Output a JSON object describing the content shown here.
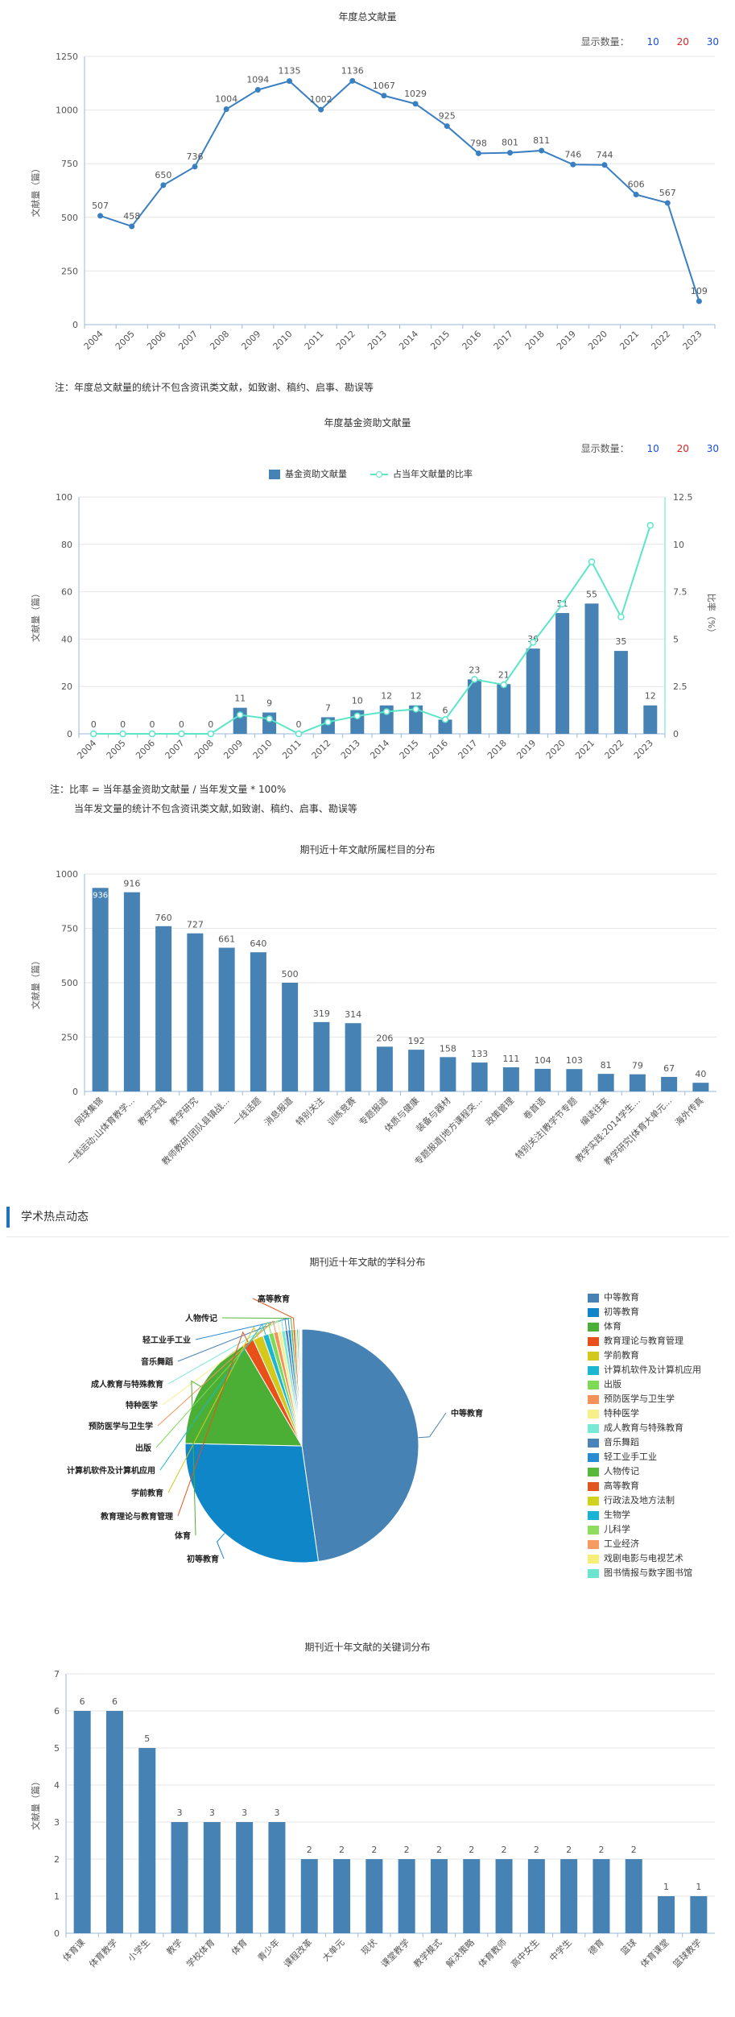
{
  "colors": {
    "bar": "#4682b4",
    "line": "#3a7fc1",
    "ratio": "#5ce6c8",
    "axis": "#9bb8d9",
    "grid": "#e6e6e6"
  },
  "count_selector": {
    "label": "显示数量：",
    "opt10": "10",
    "opt20": "20",
    "opt30": "30"
  },
  "notes": {
    "annual": "注：年度总文献量的统计不包含资讯类文献，如致谢、稿约、启事、勘误等",
    "fund1": "注：比率 = 当年基金资助文献量 / 当年发文量 * 100%",
    "fund2": "当年发文量的统计不包含资讯类文献,如致谢、稿约、启事、勘误等"
  },
  "section": {
    "title": "学术热点动态"
  },
  "chart_data": [
    {
      "type": "line",
      "title": "年度总文献量",
      "ylabel": "文献量（篇）",
      "ylim": [
        0,
        1250
      ],
      "yticks": [
        0,
        250,
        500,
        750,
        1000,
        1250
      ],
      "x": [
        "2004",
        "2005",
        "2006",
        "2007",
        "2008",
        "2009",
        "2010",
        "2011",
        "2012",
        "2013",
        "2014",
        "2015",
        "2016",
        "2017",
        "2018",
        "2019",
        "2020",
        "2021",
        "2022",
        "2023"
      ],
      "values": [
        507,
        458,
        650,
        736,
        1004,
        1094,
        1135,
        1002,
        1136,
        1067,
        1029,
        925,
        798,
        801,
        811,
        746,
        744,
        606,
        567,
        109
      ]
    },
    {
      "type": "bar",
      "title": "年度基金资助文献量",
      "ylabel": "文献量（篇）",
      "y2label": "比率（%）",
      "ylim": [
        0,
        100
      ],
      "yticks": [
        0,
        20,
        40,
        60,
        80,
        100
      ],
      "y2lim": [
        0,
        12.5
      ],
      "y2ticks": [
        "0",
        "2.5",
        "5",
        "7.5",
        "10",
        "12.5"
      ],
      "legend": [
        "基金资助文献量",
        "占当年文献量的比率"
      ],
      "x": [
        "2004",
        "2005",
        "2006",
        "2007",
        "2008",
        "2009",
        "2010",
        "2011",
        "2012",
        "2013",
        "2014",
        "2015",
        "2016",
        "2017",
        "2018",
        "2019",
        "2020",
        "2021",
        "2022",
        "2023"
      ],
      "series": [
        {
          "name": "基金资助文献量",
          "values": [
            0,
            0,
            0,
            0,
            0,
            11,
            9,
            0,
            7,
            10,
            12,
            12,
            6,
            23,
            21,
            36,
            51,
            55,
            35,
            12
          ]
        },
        {
          "name": "占当年文献量的比率",
          "values": [
            0,
            0,
            0,
            0,
            0,
            1.0,
            0.79,
            0,
            0.62,
            0.94,
            1.17,
            1.3,
            0.75,
            2.87,
            2.59,
            4.83,
            6.85,
            9.08,
            6.17,
            11.0
          ]
        }
      ]
    },
    {
      "type": "bar",
      "title": "期刊近十年文献所属栏目的分布",
      "ylabel": "文献量（篇）",
      "ylim": [
        0,
        1000
      ],
      "yticks": [
        0,
        250,
        500,
        750,
        1000
      ],
      "categories": [
        "网球集锦",
        "一线运动;山体育教学...",
        "教学实践",
        "教学研究",
        "教师教研|团队县镇战...",
        "一线话题",
        "消息报道",
        "特别关注",
        "训练竞赛",
        "专题报道",
        "体质与健康",
        "装备与器材",
        "专题报道|地方课程突...",
        "政策管理",
        "卷首语",
        "特别关注|教学节专题",
        "编读往来",
        "教学实践:2014学生...",
        "教学研究|体育大单元...",
        "海外传真"
      ],
      "values": [
        936,
        916,
        760,
        727,
        661,
        640,
        500,
        319,
        314,
        206,
        192,
        158,
        133,
        111,
        104,
        103,
        81,
        79,
        67,
        40
      ],
      "data_labels": [
        "936",
        "916",
        "760",
        "727",
        "661",
        "640",
        "500",
        "319",
        "314",
        "206",
        "192",
        "158",
        "133",
        "111",
        "104",
        "103",
        "81",
        "79",
        "67",
        "40"
      ]
    },
    {
      "type": "pie",
      "title": "期刊近十年文献的学科分布",
      "slices": [
        {
          "name": "中等教育",
          "value": 47.6,
          "color": "#4682b4"
        },
        {
          "name": "初等教育",
          "value": 27.5,
          "color": "#0e86c8"
        },
        {
          "name": "体育",
          "value": 16.2,
          "color": "#4caf35"
        },
        {
          "name": "教育理论与教育管理",
          "value": 1.6,
          "color": "#e8501a"
        },
        {
          "name": "学前教育",
          "value": 1.4,
          "color": "#d4c81c"
        },
        {
          "name": "计算机软件及计算机应用",
          "value": 0.8,
          "color": "#1bb7d0"
        },
        {
          "name": "出版",
          "value": 0.7,
          "color": "#7ed957"
        },
        {
          "name": "预防医学与卫生学",
          "value": 0.6,
          "color": "#f5925a"
        },
        {
          "name": "特种医学",
          "value": 0.5,
          "color": "#f6ef8a"
        },
        {
          "name": "成人教育与特殊教育",
          "value": 0.5,
          "color": "#78e9d5"
        },
        {
          "name": "音乐舞蹈",
          "value": 0.4,
          "color": "#4a84b8"
        },
        {
          "name": "轻工业手工业",
          "value": 0.4,
          "color": "#2a8bd0"
        },
        {
          "name": "人物传记",
          "value": 0.3,
          "color": "#58b83c"
        },
        {
          "name": "高等教育",
          "value": 0.3,
          "color": "#e0561e"
        },
        {
          "name": "行政法及地方法制",
          "value": 0.2,
          "color": "#cfd21e"
        },
        {
          "name": "生物学",
          "value": 0.2,
          "color": "#19b3d4"
        },
        {
          "name": "儿科学",
          "value": 0.2,
          "color": "#8fdd5e"
        },
        {
          "name": "工业经济",
          "value": 0.1,
          "color": "#f79b62"
        },
        {
          "name": "戏剧电影与电视艺术",
          "value": 0.1,
          "color": "#f7ee7a"
        },
        {
          "name": "图书情报与数字图书馆",
          "value": 0.1,
          "color": "#6de4d0"
        }
      ],
      "callouts": [
        "高等教育",
        "人物传记",
        "轻工业手工业",
        "音乐舞蹈",
        "成人教育与特殊教育",
        "特种医学",
        "预防医学与卫生学",
        "出版",
        "计算机软件及计算机应用",
        "学前教育",
        "教育理论与教育管理",
        "体育",
        "初等教育",
        "中等教育"
      ]
    },
    {
      "type": "bar",
      "title": "期刊近十年文献的关键词分布",
      "ylabel": "文献量（篇）",
      "ylim": [
        0,
        7
      ],
      "yticks": [
        0,
        1,
        2,
        3,
        4,
        5,
        6,
        7
      ],
      "categories": [
        "体育课",
        "体育教学",
        "小学生",
        "教学",
        "学校体育",
        "体育",
        "青少年",
        "课程改革",
        "大单元",
        "现状",
        "课堂教学",
        "教学模式",
        "解决策略",
        "体育教师",
        "高中女生",
        "中学生",
        "德育",
        "篮球",
        "体育课堂",
        "篮球教学"
      ],
      "values": [
        6,
        6,
        5,
        3,
        3,
        3,
        3,
        2,
        2,
        2,
        2,
        2,
        2,
        2,
        2,
        2,
        2,
        2,
        1,
        1
      ],
      "data_labels": [
        "6",
        "6",
        "5",
        "3",
        "3",
        "3",
        "3",
        "2",
        "2",
        "2",
        "2",
        "2",
        "2",
        "2",
        "2",
        "2",
        "2",
        "2",
        "1",
        "1"
      ]
    }
  ]
}
